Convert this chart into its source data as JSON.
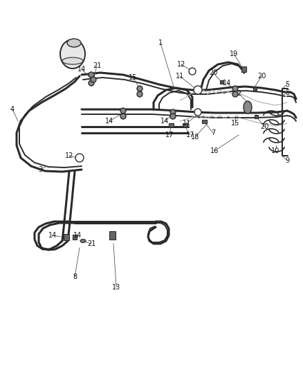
{
  "bg_color": "#ffffff",
  "line_color": "#2a2a2a",
  "label_color": "#111111",
  "fig_width": 4.38,
  "fig_height": 5.33,
  "dpi": 100
}
